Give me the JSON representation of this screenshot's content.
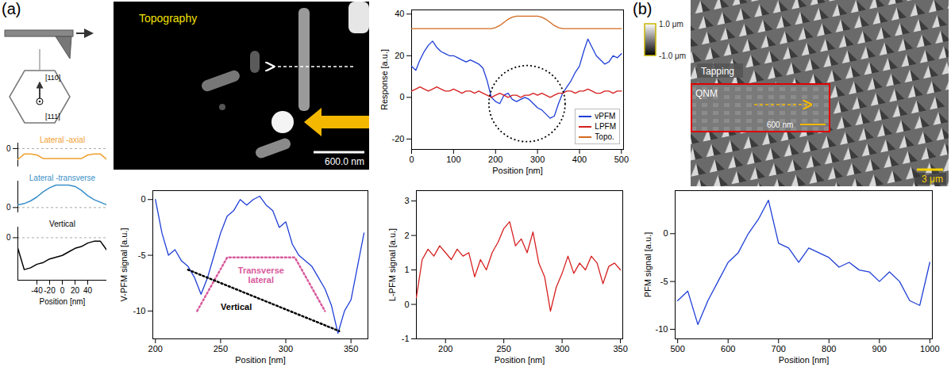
{
  "panel_labels": [
    "(a)",
    "(b)"
  ],
  "schematic": {
    "directions": [
      "[110]",
      "[111]"
    ]
  },
  "images": [
    {
      "title": "Topography",
      "scale_bar": "600.0 nm"
    },
    {
      "title": "Tapping",
      "scale_bar": "3 μm",
      "colorbar": {
        "range": [
          -1.0,
          1.0
        ],
        "ticks": [
          {
            "value": 1.0,
            "label": "1.0 μm"
          },
          {
            "value": -1.0,
            "label": "-1.0 μm"
          }
        ]
      },
      "inset": {
        "title": "QNM",
        "scale_bar": "600 nm"
      }
    }
  ],
  "chart_data": [
    {
      "type": "line",
      "xlabel": "Position [nm]",
      "grid": true,
      "x": [
        -70,
        -60,
        -50,
        -40,
        -30,
        -20,
        -10,
        0,
        10,
        20,
        30,
        40,
        50,
        60,
        70
      ],
      "xlim": [
        -70,
        70
      ],
      "xticks": [
        -40,
        -20,
        0,
        20,
        40
      ],
      "series": [
        {
          "name": "Lateral -axial",
          "color": "#f0a030",
          "ylim": [
            -1,
            0.3
          ],
          "yticks": [
            0
          ],
          "values": [
            -0.6,
            -0.3,
            -0.3,
            -0.35,
            -0.55,
            -0.55,
            -0.55,
            -0.55,
            -0.55,
            -0.55,
            -0.55,
            -0.35,
            -0.3,
            -0.3,
            -0.6
          ]
        },
        {
          "name": "Lateral -transverse",
          "color": "#3a8fc8",
          "ylim": [
            -0.2,
            1
          ],
          "yticks": [
            0
          ],
          "values": [
            0.1,
            0.15,
            0.25,
            0.4,
            0.6,
            0.75,
            0.85,
            0.85,
            0.85,
            0.8,
            0.65,
            0.45,
            0.3,
            0.2,
            0.1
          ]
        },
        {
          "name": "Vertical",
          "color": "#000000",
          "ylim": [
            -1.2,
            0.3
          ],
          "yticks": [
            0
          ],
          "values": [
            -0.3,
            -0.9,
            -0.85,
            -0.75,
            -0.7,
            -0.6,
            -0.55,
            -0.5,
            -0.4,
            -0.3,
            -0.25,
            -0.15,
            -0.1,
            -0.1,
            -0.35
          ]
        }
      ]
    },
    {
      "type": "line",
      "xlabel": "Position [nm]",
      "ylabel": "Response [a.u.]",
      "legend": "lower right",
      "x": [
        0,
        10,
        20,
        30,
        40,
        50,
        60,
        70,
        80,
        90,
        100,
        110,
        120,
        130,
        140,
        150,
        160,
        170,
        180,
        190,
        200,
        210,
        220,
        230,
        240,
        250,
        260,
        270,
        280,
        290,
        300,
        310,
        320,
        330,
        340,
        350,
        360,
        370,
        380,
        390,
        400,
        410,
        420,
        430,
        440,
        450,
        460,
        470,
        480,
        490,
        500
      ],
      "xlim": [
        0,
        505
      ],
      "xticks": [
        0,
        100,
        200,
        300,
        400,
        500
      ],
      "ylim": [
        -25,
        42
      ],
      "yticks": [
        -20,
        0,
        20,
        40
      ],
      "series": [
        {
          "name": "vPFM",
          "color": "#1f3fd6",
          "values": [
            15,
            13,
            18,
            22,
            25,
            27,
            24,
            22,
            21,
            20,
            20,
            19,
            18,
            17,
            18,
            17,
            16,
            14,
            8,
            0,
            -2,
            -3,
            1,
            2,
            -1,
            -2,
            -1,
            0,
            -1,
            -3,
            -5,
            -6,
            -8,
            -10,
            -9,
            -3,
            2,
            5,
            8,
            12,
            15,
            22,
            28,
            24,
            20,
            18,
            16,
            17,
            20,
            19,
            21
          ]
        },
        {
          "name": "LPFM",
          "color": "#d62020",
          "values": [
            3,
            4,
            5,
            4,
            3,
            4,
            5,
            4,
            3,
            3,
            4,
            3,
            2,
            3,
            3,
            2,
            3,
            2,
            1,
            0,
            1,
            2,
            1,
            0,
            1,
            1,
            0,
            1,
            1,
            2,
            1,
            2,
            1,
            0,
            1,
            2,
            2,
            3,
            3,
            2,
            3,
            3,
            4,
            3,
            2,
            2,
            3,
            3,
            2,
            3,
            3
          ]
        },
        {
          "name": "Topo.",
          "color": "#d2691e",
          "values": [
            33,
            33,
            33,
            33,
            33,
            33,
            33,
            33,
            33,
            33,
            33,
            33,
            33,
            33,
            33,
            33,
            33,
            33,
            33,
            33,
            33.5,
            34.5,
            36,
            37.5,
            38.5,
            39,
            39,
            39,
            39,
            39,
            39,
            38.5,
            37.5,
            36,
            34.5,
            33.5,
            33,
            33,
            33,
            33,
            33,
            33,
            33,
            33,
            33,
            33,
            33,
            33,
            33,
            33,
            33
          ]
        }
      ],
      "annotations": [
        {
          "type": "circle",
          "x": 275,
          "y": -3,
          "color": "#000000",
          "line_style": "dotted"
        }
      ]
    },
    {
      "type": "line",
      "xlabel": "Position [nm]",
      "ylabel": "V-PFM signal [a.u.]",
      "x": [
        200,
        205,
        210,
        215,
        220,
        225,
        230,
        235,
        240,
        245,
        250,
        255,
        260,
        265,
        270,
        275,
        280,
        285,
        290,
        295,
        300,
        305,
        310,
        315,
        320,
        325,
        330,
        335,
        340,
        345,
        350,
        355,
        360
      ],
      "xlim": [
        198,
        363
      ],
      "xticks": [
        200,
        250,
        300,
        350
      ],
      "ylim": [
        -12.5,
        0.8
      ],
      "yticks": [
        -10,
        -5,
        0
      ],
      "series": [
        {
          "name": "V-PFM",
          "color": "#1f3fd6",
          "values": [
            0,
            -3,
            -5,
            -4.5,
            -5.5,
            -6,
            -7,
            -8.5,
            -7,
            -5,
            -3,
            -1.5,
            -1,
            0,
            -0.5,
            0,
            0.3,
            -0.5,
            -1,
            -2.5,
            -2,
            -4,
            -5,
            -5.5,
            -6,
            -7,
            -8,
            -9.5,
            -12,
            -10,
            -9,
            -6,
            -3
          ]
        }
      ],
      "annotations": [
        {
          "text": "Transverse lateral",
          "color": "#d85a9c",
          "line_style": "dotted",
          "x": 281,
          "y": -6.8,
          "path": [
            [
              232,
              -10
            ],
            [
              255,
              -5.2
            ],
            [
              307,
              -5.2
            ],
            [
              330,
              -10
            ]
          ]
        },
        {
          "text": "Vertical",
          "color": "#000000",
          "line_style": "dotted",
          "x": 262,
          "y": -9.6,
          "path": [
            [
              225,
              -6.3
            ],
            [
              341,
              -11.8
            ]
          ]
        }
      ]
    },
    {
      "type": "line",
      "xlabel": "Position [nm]",
      "ylabel": "L-PFM signal [a.u.]",
      "x": [
        175,
        180,
        185,
        190,
        195,
        200,
        205,
        210,
        215,
        220,
        225,
        230,
        235,
        240,
        245,
        250,
        255,
        260,
        265,
        270,
        275,
        280,
        285,
        290,
        295,
        300,
        305,
        310,
        315,
        320,
        325,
        330,
        335,
        340,
        345,
        350
      ],
      "xlim": [
        175,
        352
      ],
      "xticks": [
        200,
        250,
        300,
        350
      ],
      "ylim": [
        -1,
        3.3
      ],
      "yticks": [
        -1,
        0,
        1,
        2,
        3
      ],
      "series": [
        {
          "name": "L-PFM",
          "color": "#d62020",
          "values": [
            0.2,
            1.3,
            1.6,
            1.4,
            1.7,
            1.5,
            1.3,
            1.6,
            1.4,
            1.5,
            0.8,
            1.3,
            1.0,
            1.5,
            1.8,
            2.2,
            2.4,
            1.7,
            1.9,
            1.5,
            2.1,
            1.2,
            0.8,
            -0.2,
            0.5,
            0.9,
            1.4,
            0.9,
            1.2,
            1.0,
            1.4,
            1.2,
            0.6,
            1.1,
            1.2,
            1.0
          ]
        }
      ]
    },
    {
      "type": "line",
      "xlabel": "Position [nm]",
      "ylabel": "PFM signal [a.u.]",
      "x": [
        500,
        520,
        540,
        560,
        580,
        600,
        620,
        640,
        660,
        680,
        700,
        720,
        740,
        760,
        780,
        800,
        820,
        840,
        860,
        880,
        900,
        920,
        940,
        960,
        980,
        1000
      ],
      "xlim": [
        495,
        1005
      ],
      "xticks": [
        500,
        600,
        700,
        800,
        900,
        1000
      ],
      "ylim": [
        -11,
        4.5
      ],
      "yticks": [
        -10,
        -5,
        0
      ],
      "series": [
        {
          "name": "PFM",
          "color": "#1f3fd6",
          "values": [
            -7,
            -6,
            -9.5,
            -7,
            -5,
            -3,
            -2,
            0,
            1.5,
            3.5,
            -1,
            -1.5,
            -3,
            -1.5,
            -2,
            -2.5,
            -3.5,
            -3,
            -3.8,
            -4,
            -5,
            -4,
            -5,
            -7,
            -7.5,
            -3
          ]
        }
      ]
    }
  ]
}
